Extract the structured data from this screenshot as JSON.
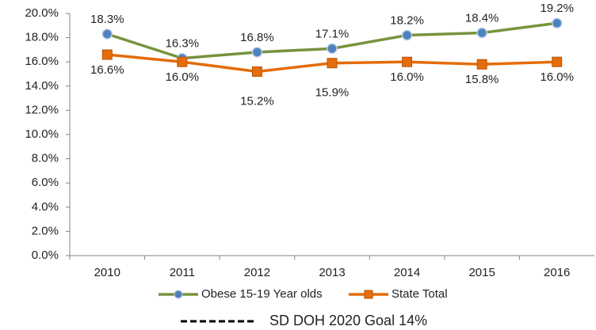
{
  "chart_data": {
    "type": "line",
    "categories": [
      "2010",
      "2011",
      "2012",
      "2013",
      "2014",
      "2015",
      "2016"
    ],
    "series": [
      {
        "name": "Obese 15-19 Year olds",
        "color": "#77933c",
        "marker": "circle",
        "marker_color": "#4f81bd",
        "values": [
          18.3,
          16.3,
          16.8,
          17.1,
          18.2,
          18.4,
          19.2
        ],
        "value_labels": [
          "18.3%",
          "16.3%",
          "16.8%",
          "17.1%",
          "18.2%",
          "18.4%",
          "19.2%"
        ]
      },
      {
        "name": "State Total",
        "color": "#e46c0a",
        "marker": "square",
        "marker_color": "#e46c0a",
        "values": [
          16.6,
          16.0,
          15.2,
          15.9,
          16.0,
          15.8,
          16.0
        ],
        "value_labels": [
          "16.6%",
          "16.0%",
          "15.2%",
          "15.9%",
          "16.0%",
          "15.8%",
          "16.0%"
        ]
      }
    ],
    "ylim": [
      0,
      20
    ],
    "yticks": [
      {
        "value": 0,
        "label": "0.0%"
      },
      {
        "value": 2,
        "label": "2.0%"
      },
      {
        "value": 4,
        "label": "4.0%"
      },
      {
        "value": 6,
        "label": "6.0%"
      },
      {
        "value": 8,
        "label": "8.0%"
      },
      {
        "value": 10,
        "label": "10.0%"
      },
      {
        "value": 12,
        "label": "12.0%"
      },
      {
        "value": 14,
        "label": "14.0%"
      },
      {
        "value": 16,
        "label": "16.0%"
      },
      {
        "value": 18,
        "label": "18.0%"
      },
      {
        "value": 20,
        "label": "20.0%"
      }
    ],
    "grid": false,
    "legend": "bottom",
    "annotations": [
      "SD DOH 2020 Goal 14%"
    ]
  }
}
